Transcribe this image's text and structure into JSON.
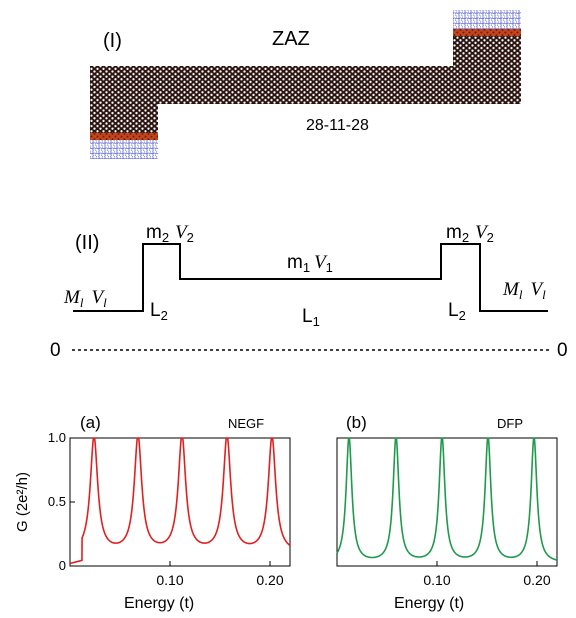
{
  "panel_I": {
    "label": "(I)",
    "structure_name": "ZAZ",
    "widths": "28-11-28",
    "colors": {
      "lattice": "#2b1410",
      "edge_strip": "#c8431a",
      "lead_lattice": "#4a54c8"
    }
  },
  "panel_II": {
    "label": "(II)",
    "left_lead": {
      "M": "M",
      "M_sub": "l",
      "V": "V",
      "V_sub": "l"
    },
    "right_lead": {
      "M": "M",
      "M_sub": "l",
      "V": "V",
      "V_sub": "l"
    },
    "barrier_left": {
      "m": "m",
      "m_sub": "2",
      "V": "V",
      "V_sub": "2",
      "L": "L",
      "L_sub": "2"
    },
    "barrier_right": {
      "m": "m",
      "m_sub": "2",
      "V": "V",
      "V_sub": "2",
      "L": "L",
      "L_sub": "2"
    },
    "well": {
      "m": "m",
      "m_sub": "1",
      "V": "V",
      "V_sub": "1",
      "L": "L",
      "L_sub": "1"
    },
    "zero_left": "0",
    "zero_right": "0"
  },
  "chart_data": [
    {
      "type": "line",
      "panel": "(a)",
      "series_label": "NEGF",
      "color": "#e02020",
      "xlabel": "Energy (t)",
      "ylabel": "G (2e²/h)",
      "xlim": [
        0.0,
        0.22
      ],
      "ylim": [
        0,
        1.0
      ],
      "x_ticks": [
        "0.10",
        "0.20"
      ],
      "x_tick_values": [
        0.1,
        0.2
      ],
      "y_ticks": [
        "0",
        "0.5",
        "1.0"
      ],
      "y_tick_values": [
        0,
        0.5,
        1.0
      ],
      "peaks": [
        0.024,
        0.068,
        0.112,
        0.157,
        0.202
      ],
      "background_minimum": 0.1,
      "resonance_width": 0.0045
    },
    {
      "type": "line",
      "panel": "(b)",
      "series_label": "DFP",
      "color": "#1f9a4a",
      "xlabel": "Energy (t)",
      "xlim": [
        0.0,
        0.22
      ],
      "ylim": [
        0,
        1.0
      ],
      "x_ticks": [
        "0.10",
        "0.20"
      ],
      "x_tick_values": [
        0.1,
        0.2
      ],
      "peaks": [
        0.012,
        0.059,
        0.105,
        0.151,
        0.197
      ],
      "background_minimum": 0.02,
      "resonance_width": 0.0035
    }
  ]
}
